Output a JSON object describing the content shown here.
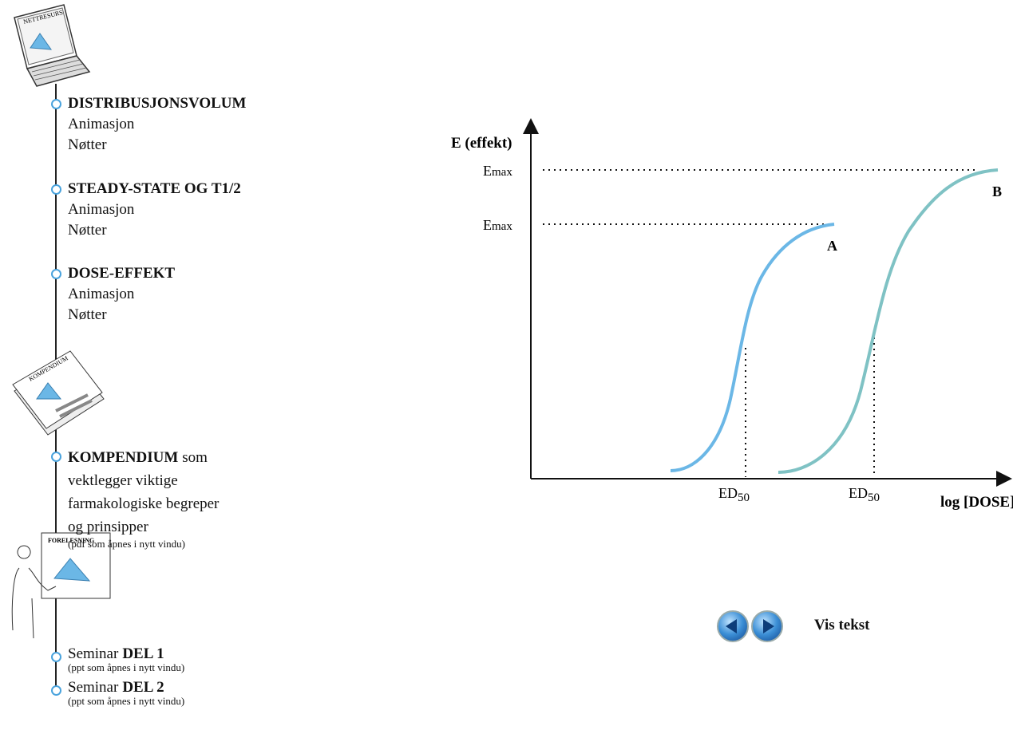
{
  "sidebar": {
    "laptop_label": "NETTRESURS",
    "sections": [
      {
        "title": "DISTRIBUSJONSVOLUM",
        "links": [
          "Animasjon",
          "Nøtter"
        ]
      },
      {
        "title": "STEADY-STATE OG T1/2",
        "links": [
          "Animasjon",
          "Nøtter"
        ]
      },
      {
        "title": "DOSE-EFFEKT",
        "links": [
          "Animasjon",
          "Nøtter"
        ]
      }
    ],
    "compendium_label": "KOMPENDIUM",
    "compendium": {
      "title": "KOMPENDIUM",
      "text": "som vektlegger viktige farmakologiske begreper og prinsipper",
      "note": "(pdf som åpnes i nytt vindu)"
    },
    "lecture_label": "FORELESNING",
    "seminars": [
      {
        "prefix": "Seminar",
        "title": "DEL 1",
        "note": "(ppt som åpnes i nytt vindu)"
      },
      {
        "prefix": "Seminar",
        "title": "DEL 2",
        "note": "(ppt som åpnes i nytt vindu)"
      }
    ]
  },
  "diagram": {
    "y_label": "E (effekt)",
    "x_label": "log [DOSE]",
    "emax_labels": [
      {
        "main": "E",
        "sub": "max"
      },
      {
        "main": "E",
        "sub": "max"
      }
    ],
    "curve_labels": [
      "A",
      "B"
    ],
    "ed50_labels": [
      {
        "main": "ED",
        "sub": "50"
      },
      {
        "main": "ED",
        "sub": "50"
      }
    ]
  },
  "controls": {
    "toggle": "Vis tekst"
  }
}
